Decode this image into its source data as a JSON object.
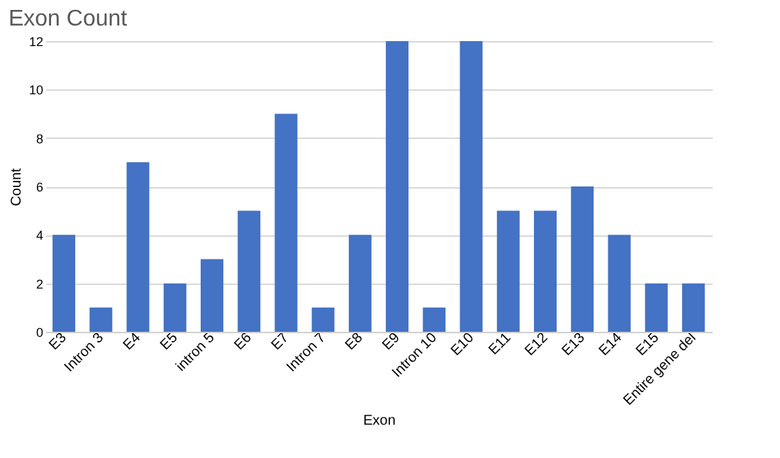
{
  "chart_data": {
    "type": "bar",
    "title": "Exon Count",
    "xlabel": "Exon",
    "ylabel": "Count",
    "categories": [
      "E3",
      "Intron 3",
      "E4",
      "E5",
      "intron 5",
      "E6",
      "E7",
      "Intron 7",
      "E8",
      "E9",
      "Intron 10",
      "E10",
      "E11",
      "E12",
      "E13",
      "E14",
      "E15",
      "Entire gene del"
    ],
    "values": [
      4,
      1,
      7,
      2,
      3,
      5,
      9,
      1,
      4,
      12,
      1,
      12,
      5,
      5,
      6,
      4,
      2,
      2
    ],
    "color": "#4472c4",
    "ylim": [
      0,
      12
    ],
    "yticks": [
      0,
      2,
      4,
      6,
      8,
      10,
      12
    ],
    "grid": "y"
  }
}
